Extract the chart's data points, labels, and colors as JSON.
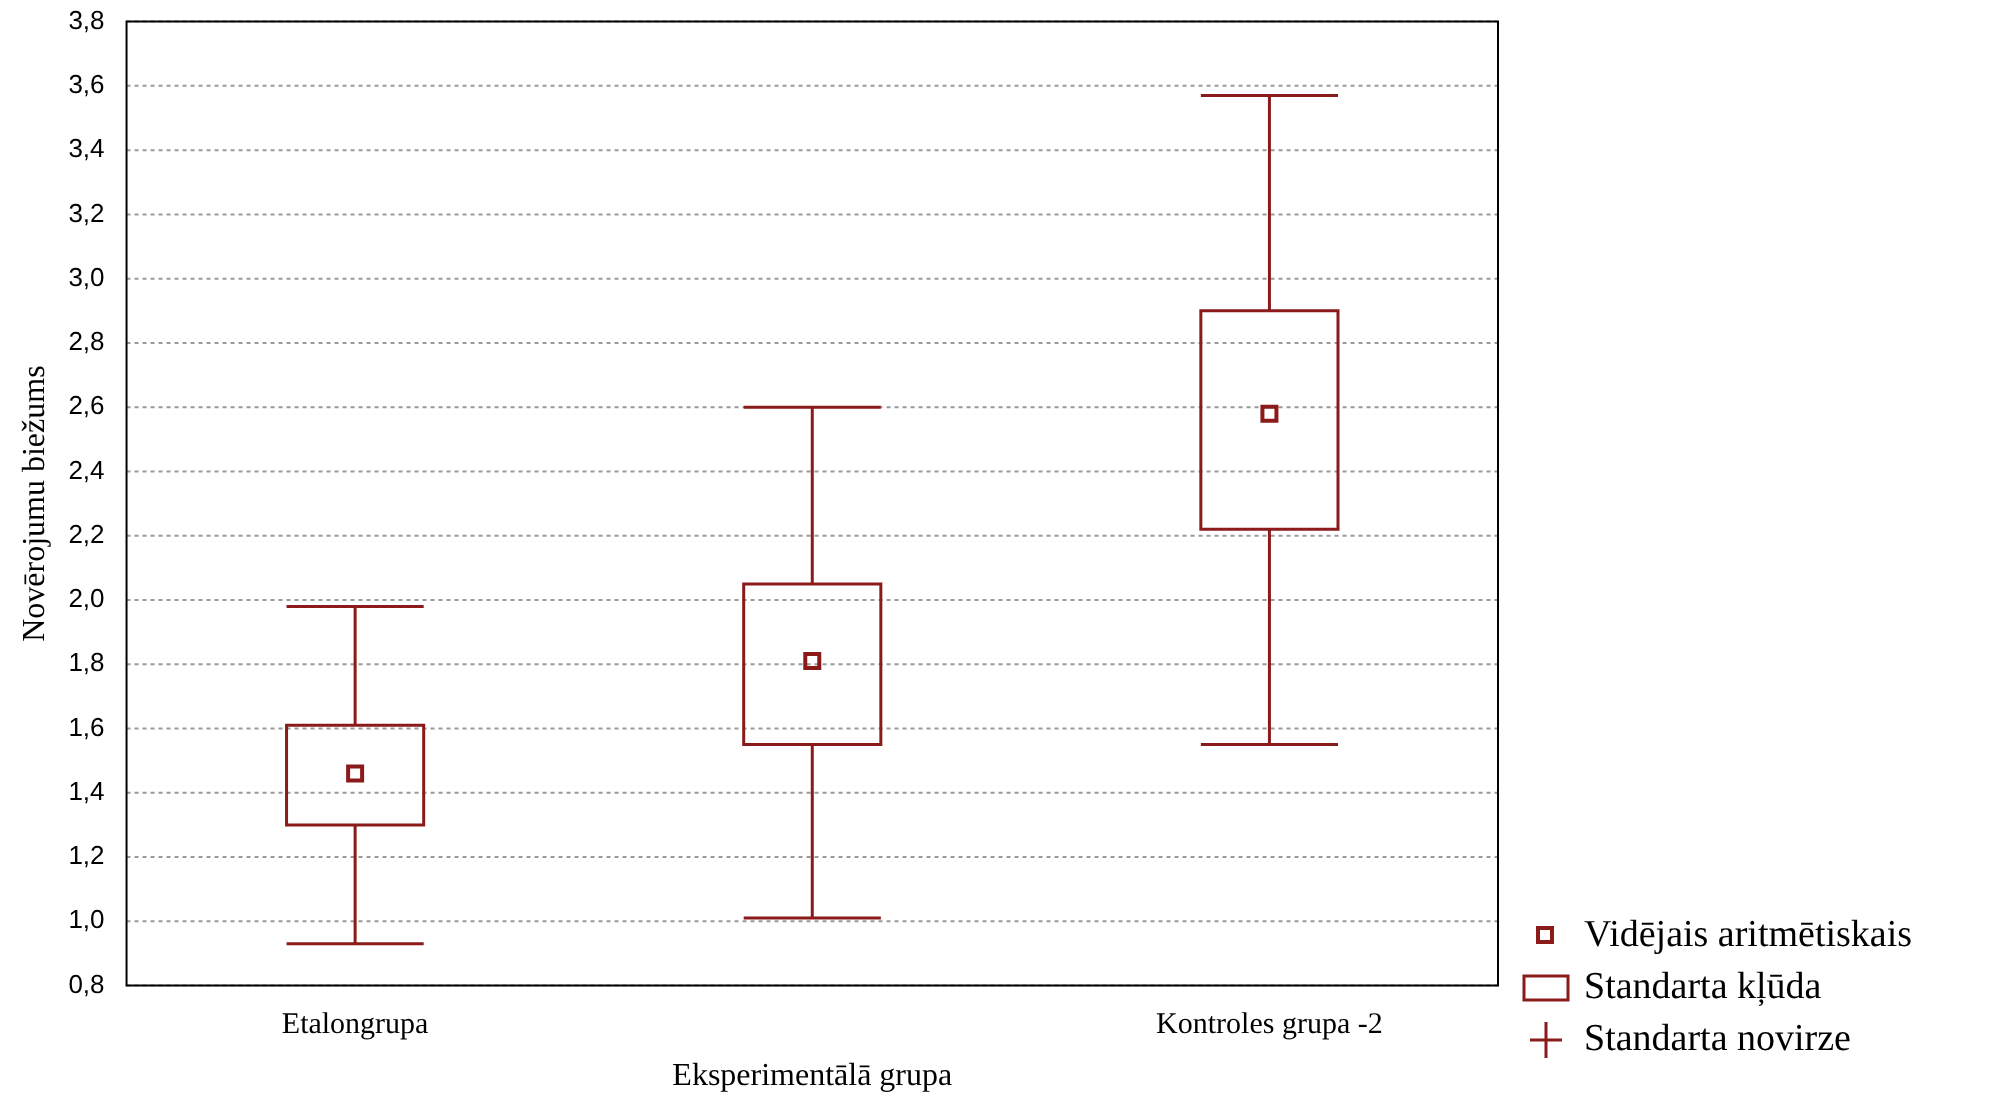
{
  "chart_data": {
    "type": "box",
    "xlabel": "Eksperimentālā grupa",
    "ylabel": "Novērojumu biežums",
    "categories": [
      "Etalongrupa",
      null,
      "Kontroles grupa -2"
    ],
    "series": [
      {
        "name": "Standarta kļūda",
        "color": "#8b1a1a",
        "boxes": [
          {
            "low": 0.93,
            "q1": 1.3,
            "median": 1.46,
            "q3": 1.61,
            "high": 1.98
          },
          {
            "low": 1.01,
            "q1": 1.55,
            "median": 1.81,
            "q3": 2.05,
            "high": 2.6
          },
          {
            "low": 1.55,
            "q1": 2.22,
            "median": 2.58,
            "q3": 2.9,
            "high": 3.57
          }
        ]
      }
    ],
    "annotations": [
      "Vidējais aritmētiskais",
      "Standarta novirze"
    ],
    "ylim": [
      0.8,
      3.8
    ],
    "yticks": [
      {
        "value": 0.8,
        "label": "0,8"
      },
      {
        "value": 1.0,
        "label": "1,0"
      },
      {
        "value": 1.2,
        "label": "1,2"
      },
      {
        "value": 1.4,
        "label": "1,4"
      },
      {
        "value": 1.6,
        "label": "1,6"
      },
      {
        "value": 1.8,
        "label": "1,8"
      },
      {
        "value": 2.0,
        "label": "2,0"
      },
      {
        "value": 2.2,
        "label": "2,2"
      },
      {
        "value": 2.4,
        "label": "2,4"
      },
      {
        "value": 2.6,
        "label": "2,6"
      },
      {
        "value": 2.8,
        "label": "2,8"
      },
      {
        "value": 3.0,
        "label": "3,0"
      },
      {
        "value": 3.2,
        "label": "3,2"
      },
      {
        "value": 3.4,
        "label": "3,4"
      },
      {
        "value": 3.6,
        "label": "3,6"
      },
      {
        "value": 3.8,
        "label": "3,8"
      }
    ],
    "grid": "y",
    "legend": "bottom right",
    "marker": "square"
  }
}
